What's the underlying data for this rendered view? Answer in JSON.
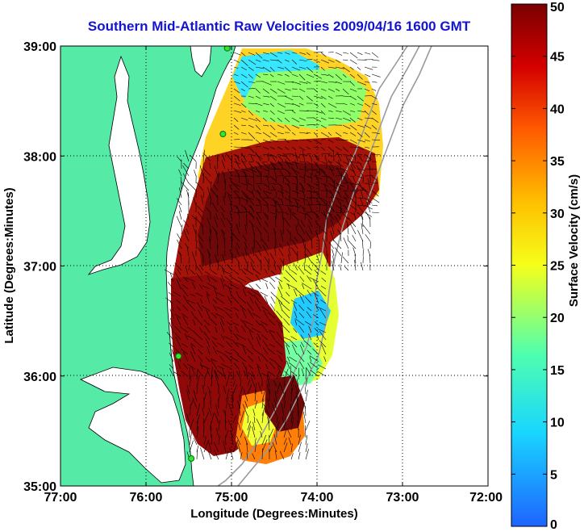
{
  "chart_data": {
    "type": "heatmap",
    "title": "Southern Mid-Atlantic Raw Velocities 2009/04/16 1600 GMT",
    "xlabel": "Longitude (Degrees:Minutes)",
    "ylabel": "Latitude (Degrees:Minutes)",
    "colorbar_label": "Surface Velocity (cm/s)",
    "xlim": [
      -77,
      -72
    ],
    "ylim": [
      35,
      39
    ],
    "x_ticks": [
      {
        "value": -77,
        "label": "77:00"
      },
      {
        "value": -76,
        "label": "76:00"
      },
      {
        "value": -75,
        "label": "75:00"
      },
      {
        "value": -74,
        "label": "74:00"
      },
      {
        "value": -73,
        "label": "73:00"
      },
      {
        "value": -72,
        "label": "72:00"
      }
    ],
    "y_ticks": [
      {
        "value": 35,
        "label": "35:00"
      },
      {
        "value": 36,
        "label": "36:00"
      },
      {
        "value": 37,
        "label": "37:00"
      },
      {
        "value": 38,
        "label": "38:00"
      },
      {
        "value": 39,
        "label": "39:00"
      }
    ],
    "colorbar": {
      "range": [
        0,
        50
      ],
      "ticks": [
        0,
        5,
        10,
        15,
        20,
        25,
        30,
        35,
        40,
        45,
        50
      ]
    },
    "grid": true,
    "colors": {
      "land": "#55eaa6",
      "title": "#1414d0",
      "low": "#1e64ff",
      "high": "#7a0000"
    },
    "station_markers": [
      {
        "lon": -75.05,
        "lat": 38.98
      },
      {
        "lon": -75.1,
        "lat": 38.2
      },
      {
        "lon": -75.62,
        "lat": 36.18
      },
      {
        "lon": -75.47,
        "lat": 35.25
      }
    ]
  }
}
